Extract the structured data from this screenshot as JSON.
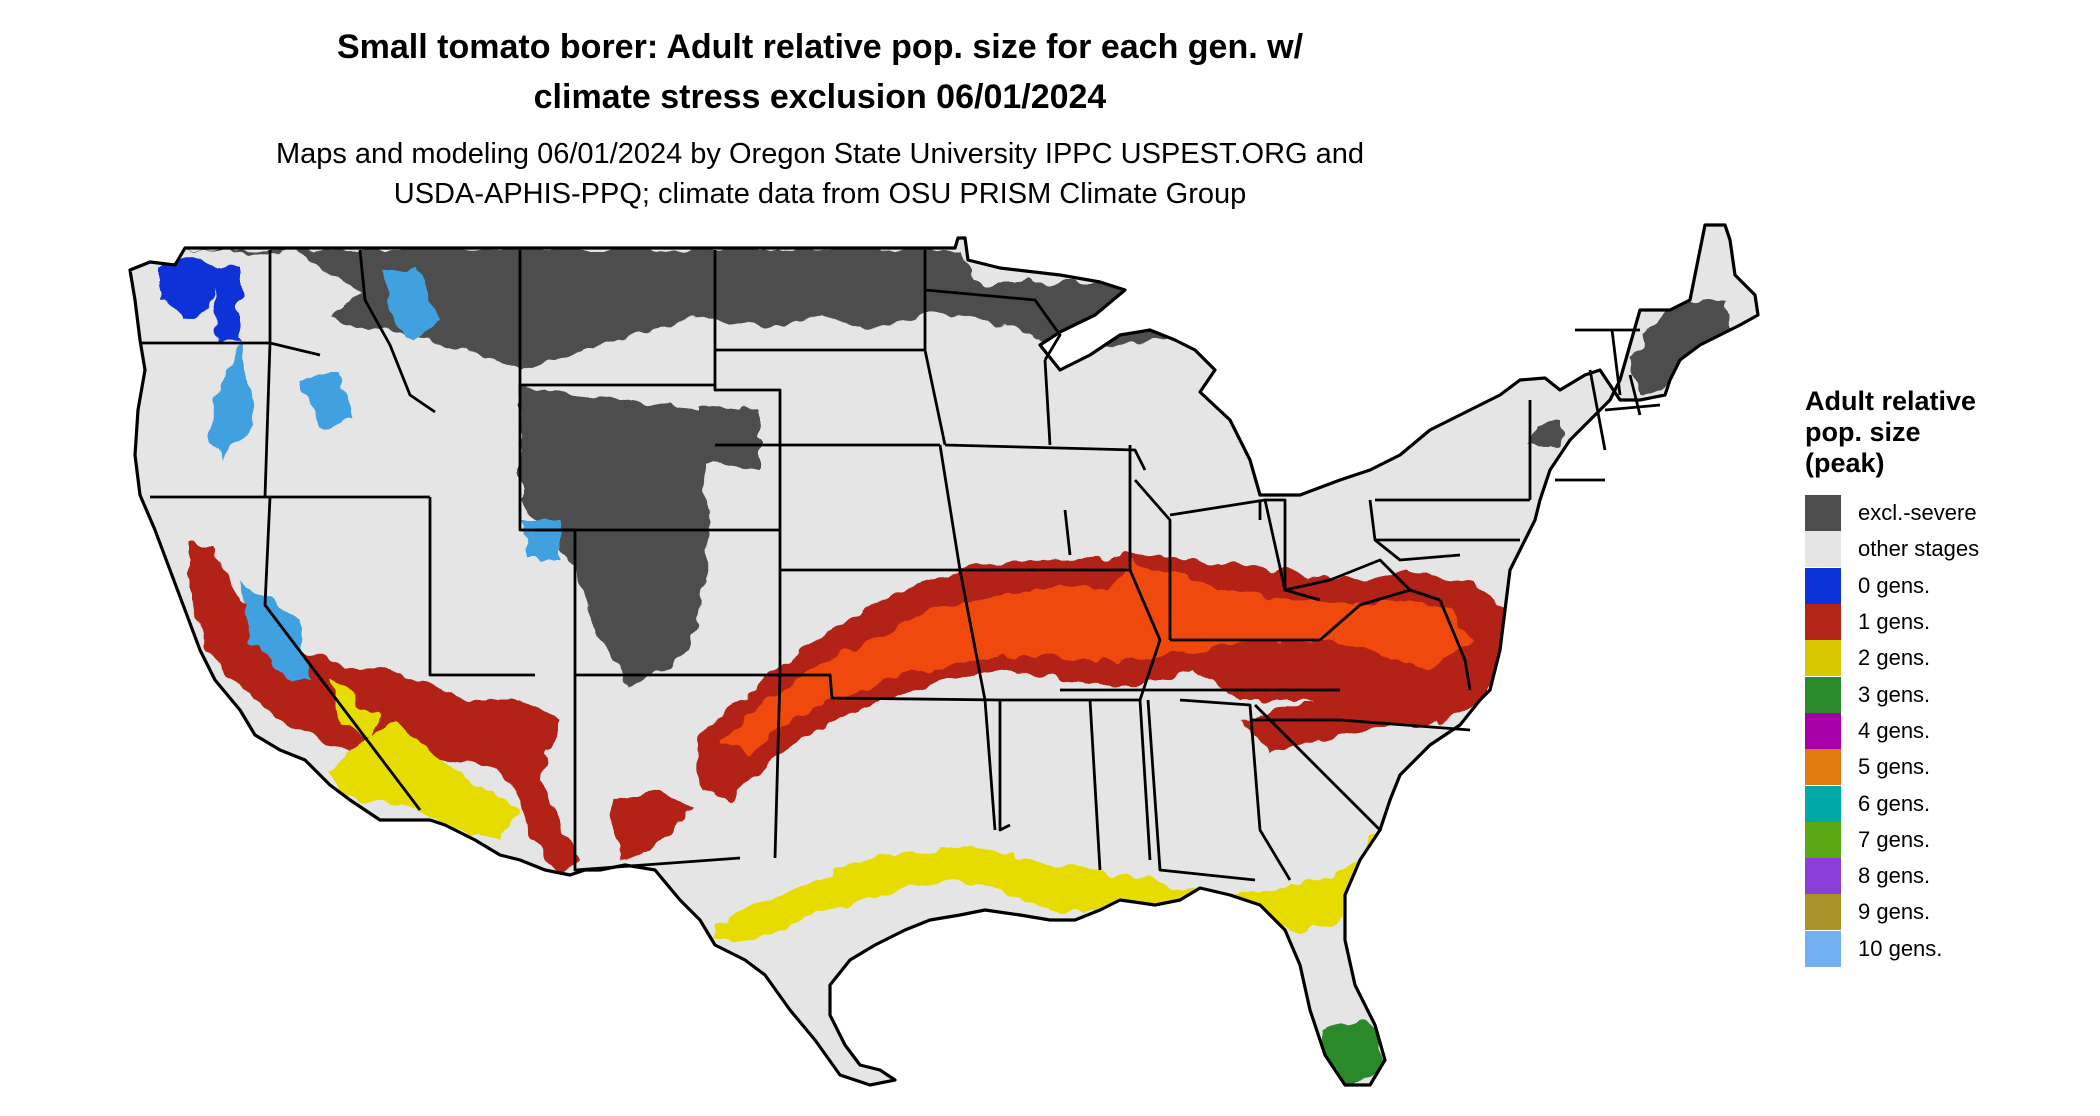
{
  "title": {
    "line1": "Small tomato borer: Adult relative pop. size for each gen. w/",
    "line2": "climate stress exclusion 06/01/2024"
  },
  "subtitle": {
    "line1": "Maps and modeling 06/01/2024 by Oregon State University IPPC USPEST.ORG and",
    "line2": "USDA-APHIS-PPQ; climate data from OSU PRISM Climate Group"
  },
  "legend": {
    "title_lines": [
      "Adult relative",
      "pop. size",
      "(peak)"
    ],
    "items": [
      {
        "label": "excl.-severe",
        "color": "#4d4d4d"
      },
      {
        "label": "other stages",
        "color": "#e5e5e5"
      },
      {
        "label": "0 gens.",
        "color": "#0b33d8"
      },
      {
        "label": "1 gens.",
        "color": "#b22416"
      },
      {
        "label": "2 gens.",
        "color": "#d8c800"
      },
      {
        "label": "3 gens.",
        "color": "#2b8a2b"
      },
      {
        "label": "4 gens.",
        "color": "#a800a8"
      },
      {
        "label": "5 gens.",
        "color": "#e07b0f"
      },
      {
        "label": "6 gens.",
        "color": "#00a8a8"
      },
      {
        "label": "7 gens.",
        "color": "#5aa813"
      },
      {
        "label": "8 gens.",
        "color": "#8b3fd8"
      },
      {
        "label": "9 gens.",
        "color": "#a8922a"
      },
      {
        "label": "10 gens.",
        "color": "#72b0f2"
      }
    ]
  },
  "map": {
    "region": "Contiguous United States",
    "colors": {
      "land": "#e5e5e5",
      "excluded": "#4d4d4d",
      "one_gen": "#b22416",
      "one_gen_bright": "#f04a10",
      "two_gen": "#e6dc00",
      "three_gen": "#2b8a2b",
      "zero_gen": "#0b33d8",
      "ten_gen": "#3fa0e0",
      "border": "#000000"
    }
  }
}
